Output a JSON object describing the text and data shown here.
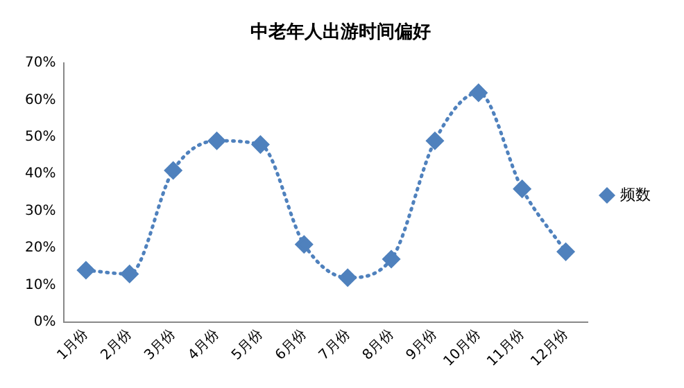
{
  "chart_data": {
    "type": "line",
    "title": "中老年人出游时间偏好",
    "categories": [
      "1月份",
      "2月份",
      "3月份",
      "4月份",
      "5月份",
      "6月份",
      "7月份",
      "8月份",
      "9月份",
      "10月份",
      "11月份",
      "12月份"
    ],
    "series": [
      {
        "name": "频数",
        "color": "#4f81bd",
        "values": [
          14,
          13,
          41,
          49,
          48,
          21,
          12,
          17,
          49,
          62,
          36,
          19
        ]
      }
    ],
    "ylim": [
      0,
      70
    ],
    "yticks": [
      {
        "value": 0,
        "label": "0%"
      },
      {
        "value": 10,
        "label": "10%"
      },
      {
        "value": 20,
        "label": "20%"
      },
      {
        "value": 30,
        "label": "30%"
      },
      {
        "value": 40,
        "label": "40%"
      },
      {
        "value": 50,
        "label": "50%"
      },
      {
        "value": 60,
        "label": "60%"
      },
      {
        "value": 70,
        "label": "70%"
      }
    ],
    "grid": false,
    "legend": "right",
    "marker": "diamond",
    "line_style": "dotted"
  }
}
